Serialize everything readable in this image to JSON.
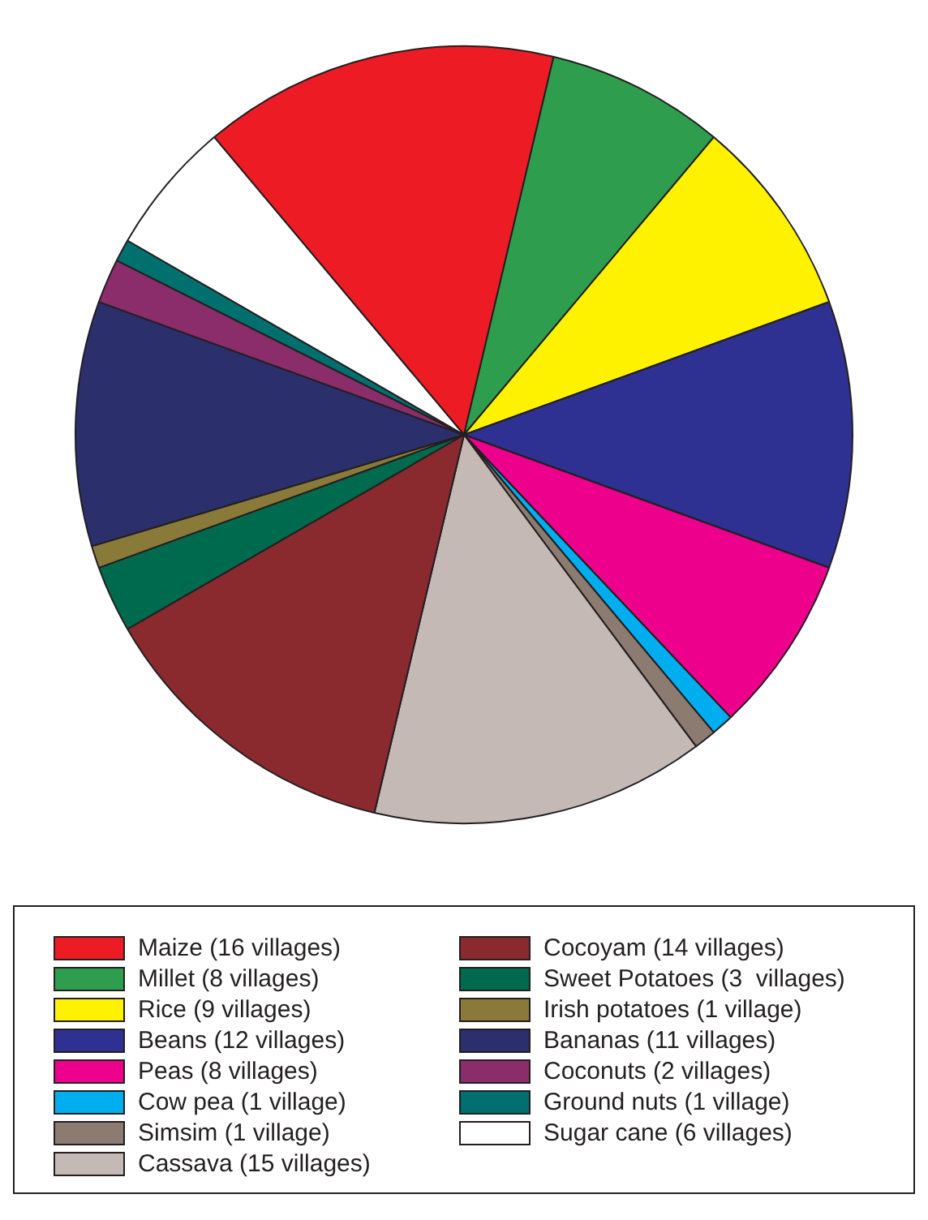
{
  "chart_data": {
    "type": "pie",
    "legend": "bottom",
    "categories": [
      "Maize (16 villages)",
      "Millet (8 villages)",
      "Rice (9 villages)",
      "Beans (12 villages)",
      "Peas (8 villages)",
      "Cow pea (1 village)",
      "Simsim (1 village)",
      "Cassava (15 villages)",
      "Cocoyam (14 villages)",
      "Sweet Potatoes (3  villages)",
      "Irish potatoes (1 village)",
      "Bananas (11 villages)",
      "Coconuts (2 villages)",
      "Ground nuts (1 village)",
      "Sugar cane (6 villages)"
    ],
    "values": [
      16,
      8,
      9,
      12,
      8,
      1,
      1,
      15,
      14,
      3,
      1,
      11,
      2,
      1,
      6
    ],
    "colors": [
      "#ed1c24",
      "#2e9e4e",
      "#fff200",
      "#2e3192",
      "#ec008c",
      "#00aeef",
      "#8c7b70",
      "#c4b9b5",
      "#8b2a2e",
      "#006a4e",
      "#8a7a3a",
      "#2b2f6b",
      "#8b2d6b",
      "#00706f",
      "#ffffff"
    ]
  }
}
